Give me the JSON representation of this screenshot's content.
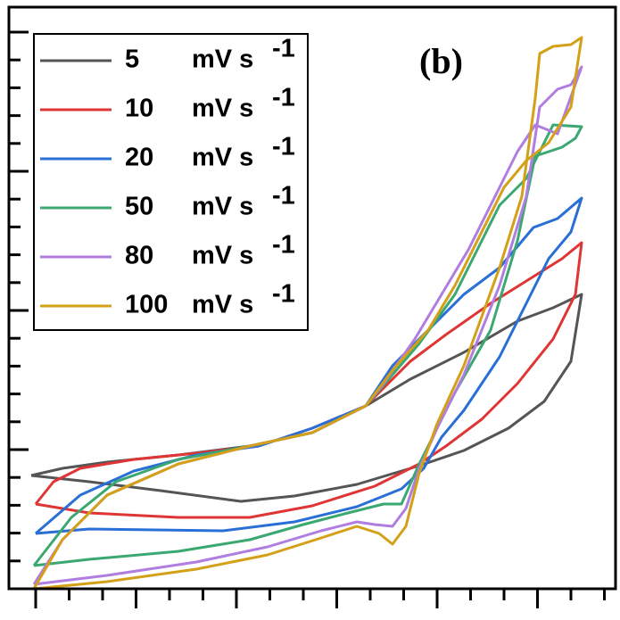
{
  "chart_data": {
    "type": "line",
    "annotation": "(b)",
    "legend_unit": "mV s",
    "legend_unit_exponent": "-1",
    "legend": "upper left",
    "xlim": [
      10,
      690
    ],
    "ylim": [
      660,
      8
    ],
    "xticks": [
      40,
      77.5,
      115,
      152.5,
      190,
      227.5,
      265,
      302.5,
      340,
      377.5,
      415,
      452.5,
      490,
      527.5,
      565,
      602.5,
      640,
      677.5
    ],
    "yticks": [
      660,
      628.8,
      597.6,
      566.4,
      535.2,
      504,
      472.8,
      441.6,
      410.4,
      379.2,
      348,
      316.8,
      285.6,
      254.4,
      223.2,
      192,
      160.8,
      129.6,
      98.4,
      67.2,
      36
    ],
    "series": [
      {
        "name": "5",
        "color": "#555555",
        "x": [
          35,
          100,
          180,
          270,
          330,
          400,
          470,
          520,
          570,
          610,
          640,
          652,
          620,
          580,
          520,
          460,
          410,
          350,
          280,
          200,
          120,
          70,
          35
        ],
        "values": [
          533,
          540,
          550,
          562,
          556,
          543,
          522,
          505,
          480,
          450,
          405,
          330,
          345,
          360,
          395,
          425,
          455,
          485,
          500,
          510,
          518,
          525,
          533
        ]
      },
      {
        "name": "10",
        "color": "#e03535",
        "x": [
          40,
          100,
          200,
          280,
          350,
          420,
          470,
          500,
          540,
          580,
          620,
          645,
          652,
          630,
          590,
          550,
          500,
          460,
          410,
          350,
          290,
          220,
          150,
          90,
          60,
          40
        ],
        "values": [
          565,
          575,
          580,
          580,
          567,
          545,
          520,
          500,
          470,
          430,
          380,
          330,
          272,
          290,
          315,
          340,
          375,
          405,
          455,
          480,
          500,
          508,
          515,
          525,
          540,
          565
        ]
      },
      {
        "name": "20",
        "color": "#2a6fd6",
        "x": [
          40,
          100,
          250,
          330,
          400,
          450,
          475,
          495,
          520,
          560,
          595,
          615,
          640,
          652,
          625,
          598,
          560,
          520,
          480,
          440,
          410,
          350,
          290,
          220,
          150,
          90,
          40
        ],
        "values": [
          598,
          593,
          595,
          585,
          568,
          548,
          525,
          490,
          460,
          400,
          330,
          290,
          260,
          222,
          245,
          255,
          300,
          330,
          370,
          410,
          455,
          480,
          500,
          510,
          528,
          555,
          598
        ]
      },
      {
        "name": "50",
        "color": "#3aa870",
        "x": [
          38,
          100,
          200,
          280,
          340,
          390,
          430,
          450,
          470,
          490,
          510,
          550,
          580,
          600,
          630,
          645,
          652,
          620,
          590,
          560,
          540,
          510,
          470,
          440,
          410,
          350,
          280,
          200,
          130,
          80,
          38
        ],
        "values": [
          634,
          627,
          618,
          605,
          588,
          575,
          565,
          565,
          520,
          480,
          440,
          370,
          270,
          175,
          165,
          155,
          142,
          140,
          200,
          230,
          270,
          330,
          385,
          420,
          455,
          485,
          500,
          515,
          540,
          580,
          634
        ]
      },
      {
        "name": "80",
        "color": "#b07de0",
        "x": [
          38,
          120,
          220,
          300,
          360,
          400,
          420,
          440,
          455,
          470,
          490,
          520,
          560,
          590,
          605,
          625,
          640,
          652,
          625,
          600,
          580,
          555,
          525,
          495,
          465,
          430,
          410,
          350,
          280,
          200,
          120,
          70,
          38
        ],
        "values": [
          655,
          645,
          630,
          613,
          595,
          585,
          588,
          590,
          570,
          525,
          480,
          420,
          320,
          220,
          120,
          100,
          95,
          75,
          150,
          140,
          170,
          220,
          280,
          330,
          380,
          430,
          455,
          485,
          500,
          520,
          555,
          605,
          655
        ]
      },
      {
        "name": "100",
        "color": "#d4a017",
        "x": [
          38,
          120,
          220,
          300,
          360,
          400,
          425,
          440,
          455,
          470,
          490,
          520,
          560,
          585,
          600,
          605,
          620,
          640,
          652,
          640,
          615,
          590,
          565,
          540,
          510,
          480,
          440,
          410,
          350,
          280,
          200,
          120,
          70,
          38
        ],
        "values": [
          660,
          652,
          638,
          622,
          603,
          590,
          598,
          610,
          590,
          530,
          475,
          410,
          300,
          220,
          110,
          60,
          52,
          50,
          42,
          120,
          160,
          180,
          210,
          260,
          320,
          370,
          415,
          455,
          485,
          500,
          520,
          555,
          605,
          660
        ]
      }
    ]
  }
}
